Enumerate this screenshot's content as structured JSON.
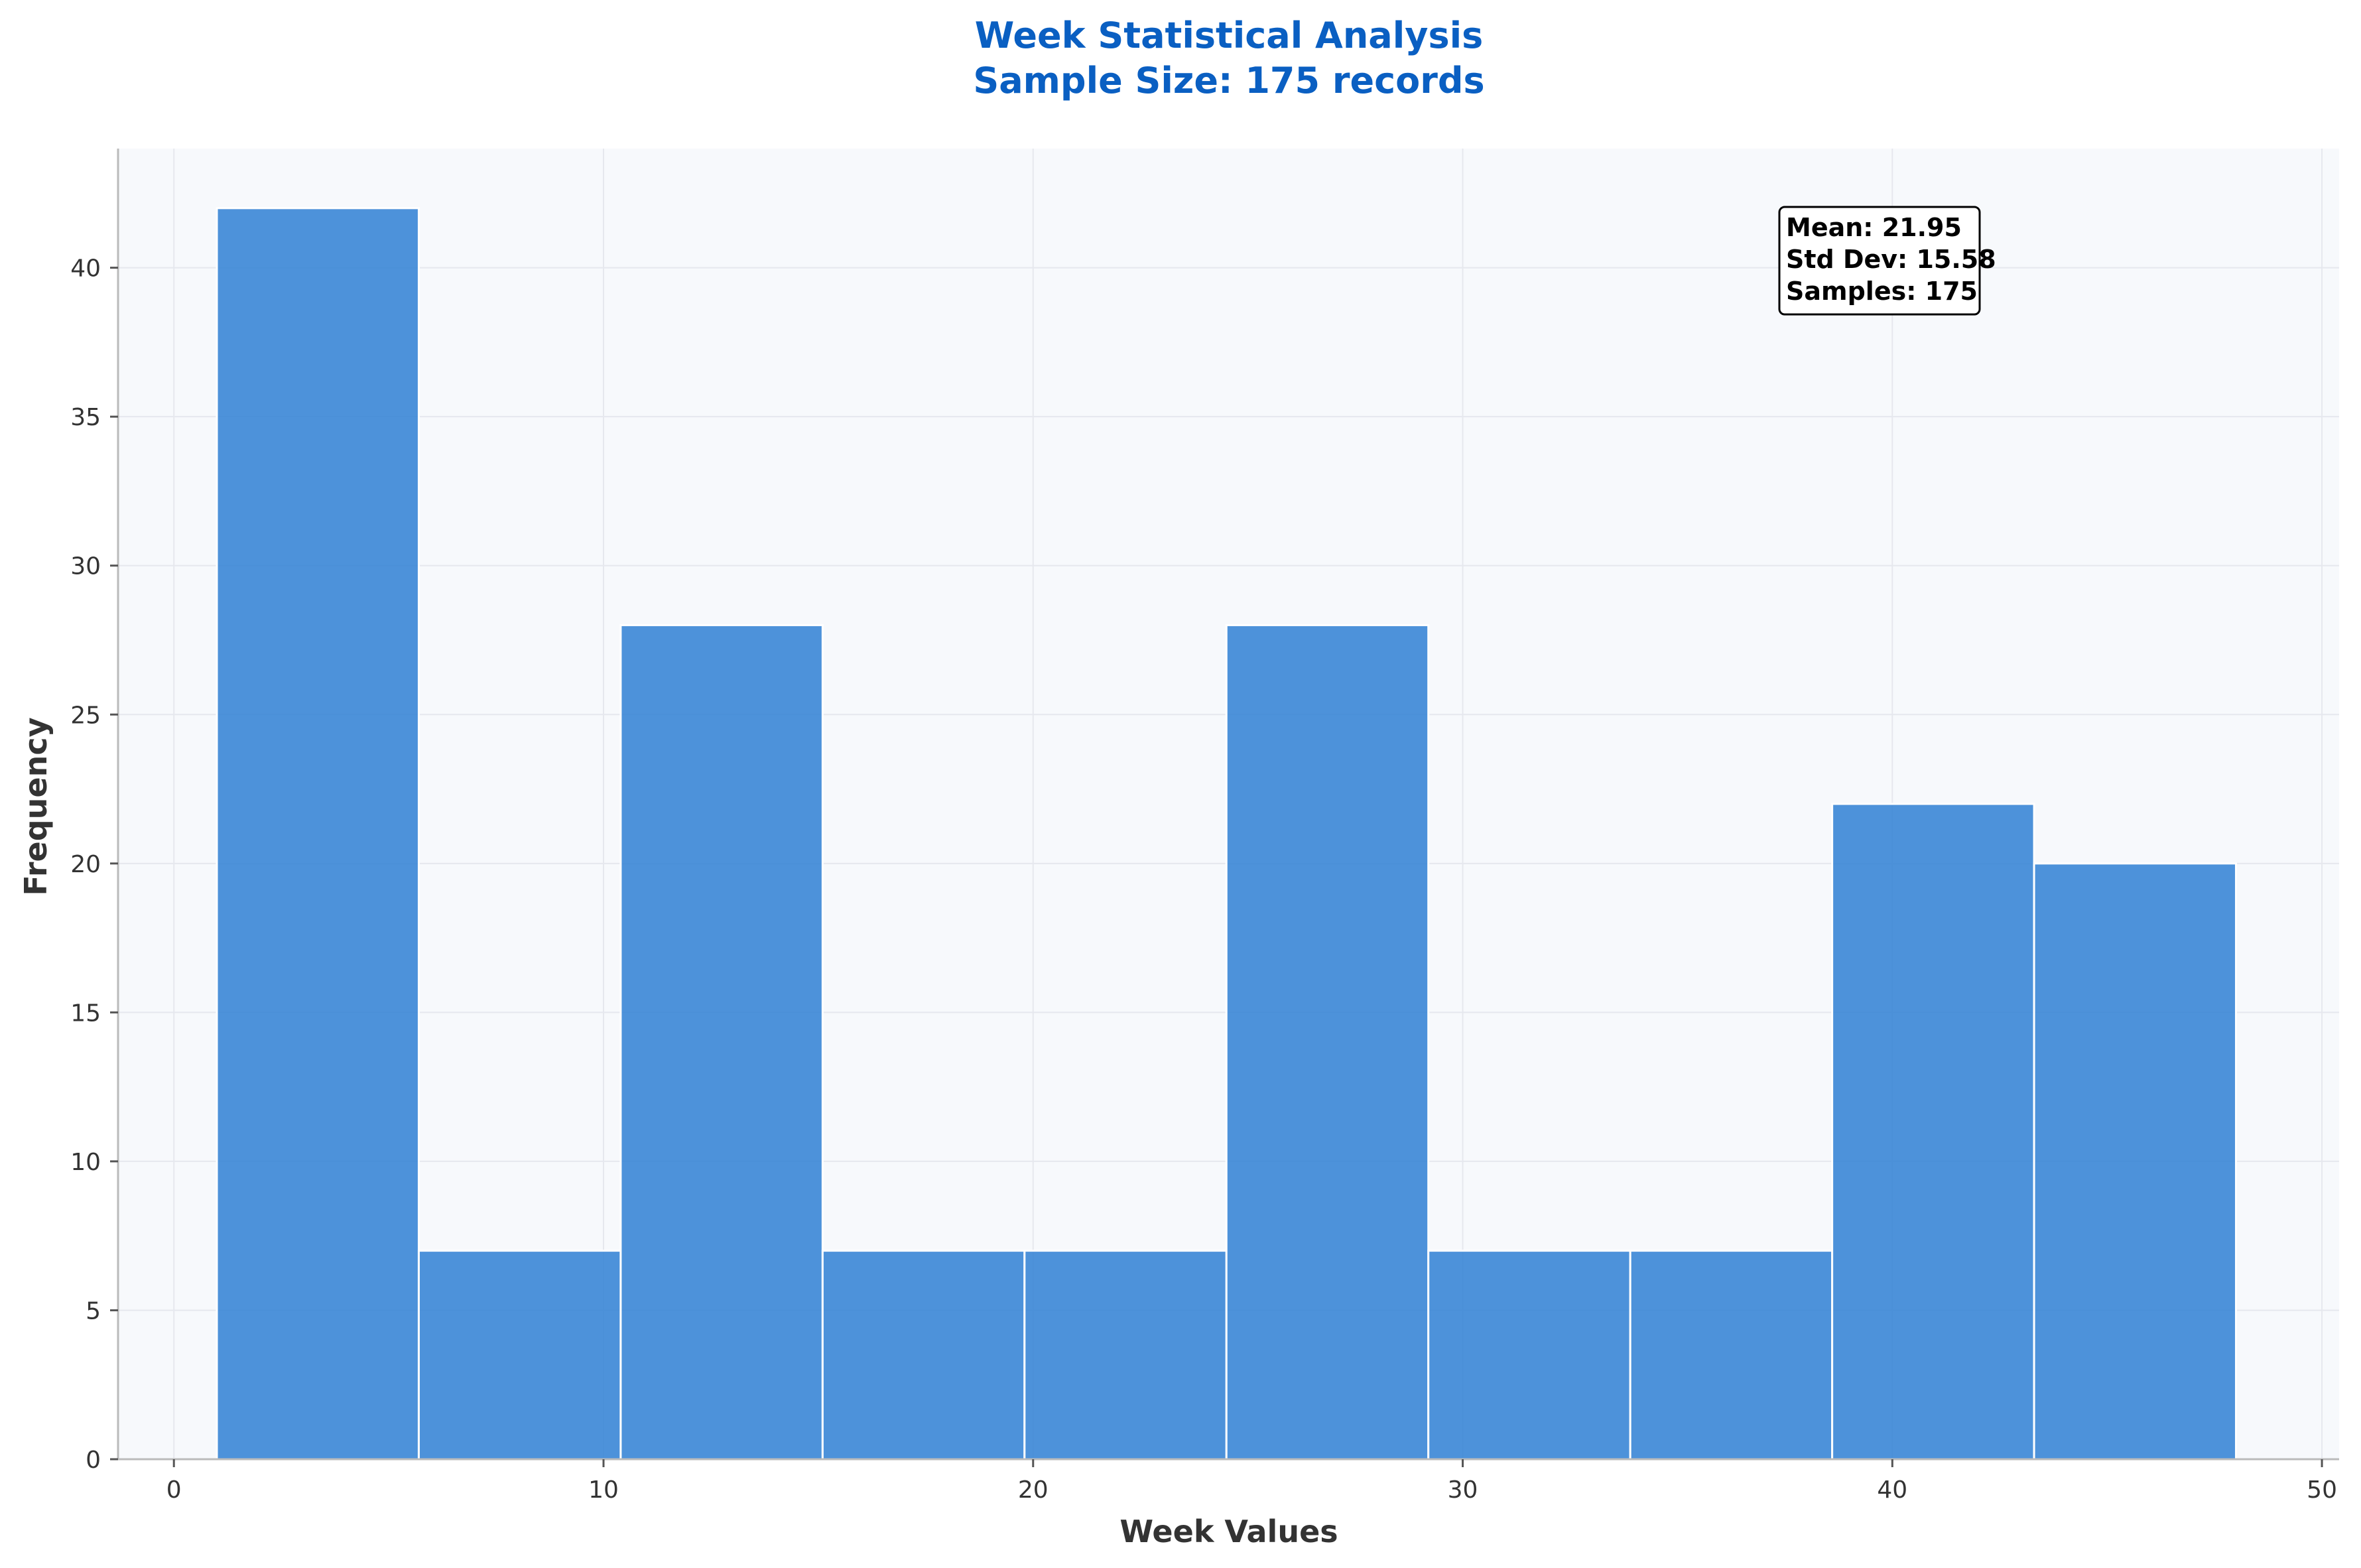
{
  "chart_data": {
    "type": "bar",
    "subtype": "histogram",
    "title": "Week Statistical Analysis",
    "subtitle": "Sample Size: 175 records",
    "xlabel": "Week Values",
    "ylabel": "Frequency",
    "xlim": [
      -1.3,
      50.4
    ],
    "ylim": [
      0,
      44
    ],
    "xticks": [
      0,
      10,
      20,
      30,
      40,
      50
    ],
    "yticks": [
      0,
      5,
      10,
      15,
      20,
      25,
      30,
      35,
      40
    ],
    "grid": true,
    "bins": [
      {
        "x0": 1.0,
        "x1": 5.7,
        "count": 42
      },
      {
        "x0": 5.7,
        "x1": 10.4,
        "count": 7
      },
      {
        "x0": 10.4,
        "x1": 15.1,
        "count": 28
      },
      {
        "x0": 15.1,
        "x1": 19.8,
        "count": 7
      },
      {
        "x0": 19.8,
        "x1": 24.5,
        "count": 7
      },
      {
        "x0": 24.5,
        "x1": 29.2,
        "count": 28
      },
      {
        "x0": 29.2,
        "x1": 33.9,
        "count": 7
      },
      {
        "x0": 33.9,
        "x1": 38.6,
        "count": 7
      },
      {
        "x0": 38.6,
        "x1": 43.3,
        "count": 22
      },
      {
        "x0": 43.3,
        "x1": 48.0,
        "count": 20
      }
    ],
    "bar_color": "#2f80d4",
    "annotation": {
      "lines": [
        "Mean: 21.95",
        "Std Dev: 15.58",
        "Samples: 175"
      ],
      "placement": "top-right"
    }
  }
}
